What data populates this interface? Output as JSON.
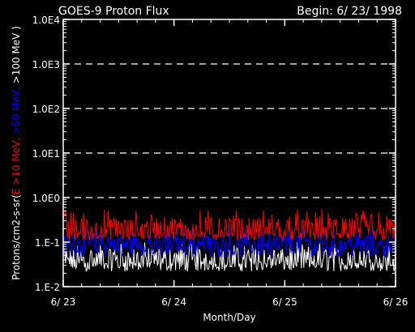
{
  "header": {
    "title": "GOES-9 Proton Flux",
    "begin": "Begin: 6/ 23/ 1998"
  },
  "colors": {
    "background": "#000000",
    "axes": "#ffffff",
    "grid": "#ffffff",
    "e10": "#ff0000",
    "e50": "#0000ff",
    "e100": "#ffffff"
  },
  "chart_data": {
    "type": "line",
    "title": "GOES-9 Proton Flux",
    "xlabel": "Month/Day",
    "ylabel_parts": [
      {
        "text": "Protons/cm2-s-sr(",
        "color": "#ffffff"
      },
      {
        "text": "E >10 MeV, ",
        "color": "#ff0000"
      },
      {
        "text": ">50 MeV, ",
        "color": "#0000ff"
      },
      {
        "text": ">100 MeV )",
        "color": "#ffffff"
      }
    ],
    "y_scale": "log",
    "ylim": [
      0.01,
      10000
    ],
    "yticks": [
      {
        "value": 0.01,
        "label": "1.E-2"
      },
      {
        "value": 0.1,
        "label": "1.E-1"
      },
      {
        "value": 1,
        "label": "1.0E0"
      },
      {
        "value": 10,
        "label": "1.0E1"
      },
      {
        "value": 100,
        "label": "1.0E2"
      },
      {
        "value": 1000,
        "label": "1.0E3"
      },
      {
        "value": 10000,
        "label": "1.0E4"
      }
    ],
    "xticks": [
      {
        "value": 0,
        "label": "6/ 23"
      },
      {
        "value": 1,
        "label": "6/ 24"
      },
      {
        "value": 2,
        "label": "6/ 25"
      },
      {
        "value": 3,
        "label": "6/ 26"
      }
    ],
    "xlim": [
      0,
      3
    ],
    "grid_dashed_at": [
      1,
      10,
      100,
      1000
    ],
    "series": [
      {
        "key": "e10",
        "color": "#ff0000",
        "base": 0.16,
        "noise_low": 0.11,
        "noise_high": 0.35,
        "spike_max": 0.55
      },
      {
        "key": "e50",
        "color": "#0000ff",
        "base": 0.085,
        "noise_low": 0.045,
        "noise_high": 0.15,
        "spike_max": 0.22
      },
      {
        "key": "e100",
        "color": "#ffffff",
        "base": 0.035,
        "noise_low": 0.022,
        "noise_high": 0.07,
        "spike_max": 0.1
      }
    ],
    "samples": 420
  }
}
